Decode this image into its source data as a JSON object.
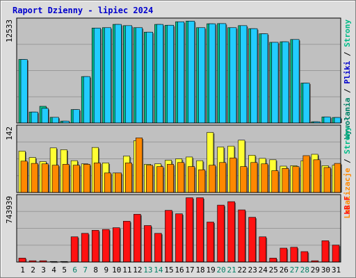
{
  "chart_data": {
    "type": "bar",
    "title": "Raport Dzienny -  lipiec 2024",
    "colors": {
      "background": "#dcdcdc",
      "frame_light": "#ffffff",
      "frame_dark": "#808080",
      "plot_bg": "#c0c0c0",
      "grid": "#999999",
      "border": "#000000",
      "title": "#0000cc",
      "tick_label": "#000000",
      "weekend_day": "#008066",
      "weekday_day": "#000000",
      "visits": "#22ccff",
      "hosts": "#00bb88",
      "pages": "#ff8800",
      "files": "#ffff33",
      "kbytes": "#ff1111"
    },
    "categories": [
      "1",
      "2",
      "3",
      "4",
      "5",
      "6",
      "7",
      "8",
      "9",
      "10",
      "11",
      "12",
      "13",
      "14",
      "15",
      "16",
      "17",
      "18",
      "19",
      "20",
      "21",
      "22",
      "23",
      "24",
      "25",
      "26",
      "27",
      "28",
      "29",
      "30",
      "31"
    ],
    "weekend_days": [
      "6",
      "7",
      "13",
      "14",
      "20",
      "21",
      "27",
      "28"
    ],
    "panels": [
      {
        "id": "visits-panel",
        "ymax_label": "12533",
        "ymax": 12533,
        "side_label_parts": [
          {
            "text": "Wywołania",
            "color": "#008066"
          },
          {
            "text": " / ",
            "color": "#000000"
          },
          {
            "text": "Pliki",
            "color": "#0000cc"
          },
          {
            "text": " / ",
            "color": "#000000"
          },
          {
            "text": "Strony",
            "color": "#00bb88"
          }
        ],
        "series": [
          {
            "role": "back",
            "color": "#00bb88",
            "values": [
              7800,
              1350,
              2050,
              700,
              240,
              1650,
              5700,
              11650,
              11700,
              12100,
              11950,
              11700,
              11150,
              12100,
              12000,
              12420,
              12500,
              11700,
              12180,
              12200,
              11700,
              11950,
              11580,
              10950,
              9900,
              9970,
              10250,
              4900,
              160,
              750,
              680
            ]
          },
          {
            "role": "front",
            "color": "#22ccff",
            "values": [
              7800,
              1350,
              1800,
              700,
              240,
              1650,
              5700,
              11650,
              11700,
              12100,
              11950,
              11700,
              11150,
              12100,
              12000,
              12420,
              12500,
              11700,
              12180,
              12200,
              11700,
              11950,
              11580,
              10950,
              9900,
              9970,
              10250,
              4900,
              160,
              750,
              680
            ]
          }
        ]
      },
      {
        "id": "pages-panel",
        "ymax_label": "142",
        "ymax": 142,
        "side_label_parts": [
          {
            "text": "Lokalizacje",
            "color": "#ff8800"
          },
          {
            "text": " / ",
            "color": "#000000"
          },
          {
            "text": "Strony",
            "color": "#00bb88"
          }
        ],
        "series": [
          {
            "role": "back",
            "color": "#ffff33",
            "values": [
              91,
              77,
              68,
              98,
              94,
              70,
              63,
              99,
              65,
              43,
              80,
              114,
              62,
              63,
              71,
              74,
              78,
              70,
              132,
              100,
              102,
              115,
              82,
              75,
              72,
              58,
              59,
              70,
              84,
              59,
              60
            ]
          },
          {
            "role": "front",
            "color": "#ff8800",
            "values": [
              69,
              64,
              63,
              60,
              62,
              60,
              62,
              65,
              43,
              43,
              65,
              120,
              60,
              57,
              62,
              66,
              57,
              50,
              60,
              66,
              76,
              57,
              66,
              63,
              48,
              53,
              57,
              81,
              72,
              55,
              64
            ]
          }
        ]
      },
      {
        "id": "kbytes-panel",
        "ymax_label": "743939",
        "ymax": 743939,
        "side_label_parts": [
          {
            "text": "kB F",
            "color": "#ff1111"
          }
        ],
        "series": [
          {
            "role": "single",
            "color": "#ff1111",
            "values": [
              45000,
              15000,
              15000,
              6000,
              6000,
              290000,
              330000,
              365000,
              375000,
              395000,
              470000,
              550000,
              420000,
              330000,
              595000,
              555000,
              740000,
              740000,
              460000,
              655000,
              695000,
              600000,
              515000,
              290000,
              45000,
              160000,
              170000,
              120000,
              15000,
              245000,
              195000
            ]
          }
        ]
      }
    ]
  }
}
